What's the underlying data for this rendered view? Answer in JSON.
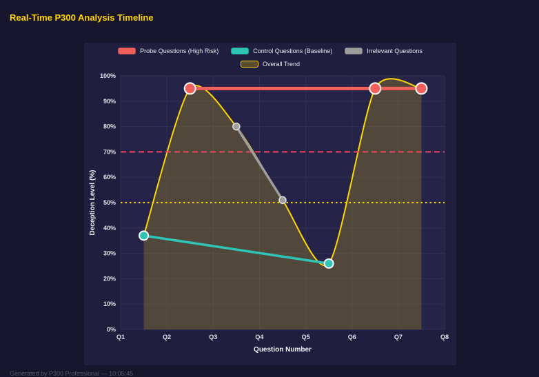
{
  "title": "Real-Time P300 Analysis Timeline",
  "footer": "Generated by P300 Professional — 10:05:45",
  "colors": {
    "page_bg": "#16152b",
    "panel_bg": "#201e3e",
    "plot_bg": "#262349",
    "grid": "#312f52",
    "tick_text": "#e2e3ee",
    "axis_text": "#f2f2f8",
    "legend_text": "#e8e8f2",
    "title_text": "#ffd400",
    "footer_text": "#565668",
    "trend_fill": "rgba(255,215,0,0.20)"
  },
  "chart_data": {
    "type": "line",
    "title": "Real-Time P300 Analysis Timeline",
    "xlabel": "Question Number",
    "ylabel": "Deception Level (%)",
    "x_range": [
      1,
      8
    ],
    "ylim": [
      0,
      100
    ],
    "grid": true,
    "legend_position": "top-center",
    "x_ticks": [
      {
        "value": 1,
        "label": "Q1"
      },
      {
        "value": 2,
        "label": "Q2"
      },
      {
        "value": 3,
        "label": "Q3"
      },
      {
        "value": 4,
        "label": "Q4"
      },
      {
        "value": 5,
        "label": "Q5"
      },
      {
        "value": 6,
        "label": "Q6"
      },
      {
        "value": 7,
        "label": "Q7"
      },
      {
        "value": 8,
        "label": "Q8"
      }
    ],
    "y_ticks": [
      {
        "value": 0,
        "label": "0%"
      },
      {
        "value": 10,
        "label": "10%"
      },
      {
        "value": 20,
        "label": "20%"
      },
      {
        "value": 30,
        "label": "30%"
      },
      {
        "value": 40,
        "label": "40%"
      },
      {
        "value": 50,
        "label": "50%"
      },
      {
        "value": 60,
        "label": "60%"
      },
      {
        "value": 70,
        "label": "70%"
      },
      {
        "value": 80,
        "label": "80%"
      },
      {
        "value": 90,
        "label": "90%"
      },
      {
        "value": 100,
        "label": "100%"
      }
    ],
    "series": [
      {
        "key": "probe",
        "name": "Probe Questions (High Risk)",
        "color": "#f2605c",
        "swatch_border": "#c04f4c",
        "marker_edge": "#ffffff",
        "marker_radius": 8,
        "line_width": 5,
        "points": [
          [
            2.5,
            95
          ],
          [
            6.5,
            95
          ],
          [
            7.5,
            95
          ]
        ]
      },
      {
        "key": "control",
        "name": "Control Questions (Baseline)",
        "color": "#2ec4b6",
        "swatch_border": "#1f9a8f",
        "marker_edge": "#ffffff",
        "marker_radius": 6.5,
        "line_width": 3.5,
        "points": [
          [
            1.5,
            37
          ],
          [
            5.5,
            26
          ]
        ]
      },
      {
        "key": "irrelevant",
        "name": "Irrelevant Questions",
        "color": "#9e9e9e",
        "swatch_border": "#7a7a7a",
        "marker_edge": "#e0e0e0",
        "marker_radius": 5,
        "line_width": 3.5,
        "points": [
          [
            3.5,
            80
          ],
          [
            4.5,
            51
          ]
        ]
      },
      {
        "key": "trend",
        "name": "Overall Trend",
        "color": "#ffd700",
        "swatch_border": "#ffd700",
        "swatch_fill": "rgba(255,215,0,0.25)",
        "smooth": true,
        "fill_to_zero": true,
        "marker_radius": 0,
        "line_width": 2,
        "points": [
          [
            1.5,
            37
          ],
          [
            2.5,
            95
          ],
          [
            3.5,
            80
          ],
          [
            4.5,
            51
          ],
          [
            5.5,
            26
          ],
          [
            6.5,
            95
          ],
          [
            7.5,
            95
          ]
        ]
      }
    ],
    "legend_rows": [
      [
        "probe",
        "control",
        "irrelevant"
      ],
      [
        "trend"
      ]
    ],
    "reference_lines": [
      {
        "y": 70,
        "color": "#f0435f",
        "style": "dashed"
      },
      {
        "y": 50,
        "color": "#ffd700",
        "style": "dotted"
      }
    ]
  }
}
